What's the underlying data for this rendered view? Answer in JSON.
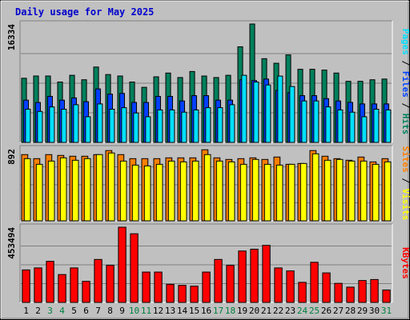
{
  "colors": {
    "background": "#c0c0c0",
    "panel": "#c0c0c0",
    "grid": "#808080",
    "title": "#0000cc",
    "day_normal": "#000000",
    "day_weekend": "#008040",
    "hits": "#00805c",
    "files": "#0040ff",
    "pages": "#00e0ff",
    "visits": "#ffff00",
    "sites": "#ff8000",
    "kbytes": "#ff0000"
  },
  "chart_data": {
    "type": "bar",
    "title": "Daily usage for May 2025",
    "categories": [
      "1",
      "2",
      "3",
      "4",
      "5",
      "6",
      "7",
      "8",
      "9",
      "10",
      "11",
      "12",
      "13",
      "14",
      "15",
      "16",
      "17",
      "18",
      "19",
      "20",
      "21",
      "22",
      "23",
      "24",
      "25",
      "26",
      "27",
      "28",
      "29",
      "30",
      "31"
    ],
    "weekend_days": [
      "3",
      "4",
      "10",
      "11",
      "17",
      "18",
      "24",
      "25",
      "31"
    ],
    "panels": [
      {
        "name": "usage",
        "ymax": 16334,
        "ymax_label": "16334",
        "side_labels": [
          {
            "text": "Pages",
            "color": "#00e0ff"
          },
          {
            "text": " / ",
            "color": "#000000"
          },
          {
            "text": "Files",
            "color": "#0040ff"
          },
          {
            "text": " / ",
            "color": "#000000"
          },
          {
            "text": "Hits",
            "color": "#00805c"
          }
        ],
        "series": [
          {
            "name": "Hits",
            "color": "#00805c",
            "values": [
              8850,
              9160,
              9160,
              8330,
              9260,
              8640,
              10400,
              9360,
              9160,
              8330,
              7600,
              9050,
              9570,
              8950,
              9780,
              9160,
              8950,
              9260,
              13190,
              16334,
              11550,
              10920,
              12070,
              10090,
              10090,
              9980,
              9570,
              8430,
              8430,
              8640,
              8740
            ]
          },
          {
            "name": "Files",
            "color": "#0040ff",
            "values": [
              5830,
              5510,
              6350,
              5830,
              6140,
              5620,
              7380,
              6660,
              6760,
              5520,
              5510,
              6350,
              6350,
              5720,
              6450,
              6450,
              5830,
              5830,
              8640,
              8530,
              8740,
              7180,
              6870,
              6450,
              6450,
              6040,
              5720,
              5520,
              5310,
              5310,
              5310
            ]
          },
          {
            "name": "Pages",
            "color": "#00e0ff",
            "values": [
              4580,
              4270,
              4890,
              4580,
              5200,
              3540,
              5310,
              4580,
              4790,
              4060,
              3540,
              4480,
              4480,
              4170,
              4480,
              4790,
              4790,
              5200,
              9260,
              8330,
              7920,
              9150,
              7710,
              5720,
              5720,
              4900,
              4480,
              4170,
              3540,
              4580,
              4480
            ]
          }
        ]
      },
      {
        "name": "visits",
        "ymax": 892,
        "ymax_label": "892",
        "side_labels": [
          {
            "text": "Sites",
            "color": "#ff8000"
          },
          {
            "text": " / ",
            "color": "#000000"
          },
          {
            "text": "Visits",
            "color": "#ffff00"
          }
        ],
        "series": [
          {
            "name": "Sites",
            "color": "#ff8000",
            "values": [
              820,
              770,
              820,
              810,
              800,
              800,
              820,
              870,
              820,
              770,
              770,
              770,
              780,
              780,
              780,
              880,
              780,
              760,
              770,
              780,
              760,
              790,
              700,
              710,
              870,
              800,
              770,
              750,
              790,
              730,
              770
            ]
          },
          {
            "name": "Visits",
            "color": "#ffff00",
            "values": [
              770,
              700,
              740,
              780,
              750,
              770,
              820,
              840,
              740,
              690,
              680,
              700,
              740,
              730,
              740,
              820,
              740,
              730,
              700,
              760,
              700,
              690,
              700,
              710,
              830,
              750,
              760,
              740,
              740,
              700,
              730
            ]
          }
        ]
      },
      {
        "name": "kbytes",
        "ymax": 453494,
        "ymax_label": "453494",
        "side_labels": [
          {
            "text": "KBytes",
            "color": "#ff0000"
          }
        ],
        "series": [
          {
            "name": "KBytes",
            "color": "#ff0000",
            "values": [
              196000,
              208000,
              248000,
              168000,
              208000,
              127000,
              259000,
              224000,
              453494,
              414000,
              183000,
              183000,
              109000,
              103000,
              98000,
              183000,
              259000,
              224000,
              310000,
              321000,
              344000,
              208000,
              190000,
              121000,
              242000,
              178000,
              115000,
              92000,
              132000,
              138000,
              75000
            ]
          }
        ]
      }
    ]
  }
}
